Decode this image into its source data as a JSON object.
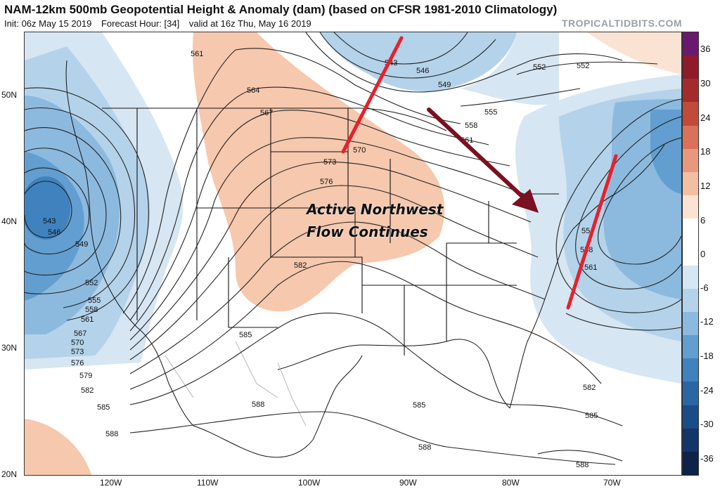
{
  "header": {
    "title": "NAM-12km 500mb Geopotential Height & Anomaly (dam) (based on CFSR 1981-2010 Climatology)",
    "init": "Init: 06z May 15 2019",
    "forecast_hour": "Forecast Hour: [34]",
    "valid": "valid at 16z Thu, May 16 2019",
    "watermark": "TROPICALTIDBITS.COM"
  },
  "annotation": {
    "line1": "Active Northwest",
    "line2": "Flow Continues"
  },
  "colorbar": {
    "labels": [
      "36",
      "30",
      "24",
      "18",
      "12",
      "6",
      "0",
      "-6",
      "-12",
      "-18",
      "-24",
      "-30",
      "-36"
    ],
    "colors": [
      "#6a1a6e",
      "#8e1a2a",
      "#a52a2a",
      "#c24a3a",
      "#d9725a",
      "#e8987c",
      "#f3bfa4",
      "#fbe3d3",
      "#ffffff",
      "#ffffff",
      "#d6e6f2",
      "#b4d3ea",
      "#8cbadf",
      "#629ecf",
      "#3f82be",
      "#2a66a6",
      "#1b4c8a",
      "#14356a",
      "#0d234a"
    ]
  },
  "axes": {
    "lat_labels": [
      "50N",
      "40N",
      "30N",
      "20N"
    ],
    "lon_labels": [
      "120W",
      "110W",
      "100W",
      "90W",
      "80W",
      "70W"
    ]
  },
  "contour_labels": [
    "561",
    "564",
    "567",
    "570",
    "573",
    "576",
    "582",
    "585",
    "588",
    "543",
    "546",
    "549",
    "552",
    "555",
    "558",
    "561",
    "567",
    "570",
    "573",
    "576",
    "579",
    "582",
    "585",
    "588",
    "543",
    "546",
    "549",
    "552",
    "552",
    "555",
    "558",
    "561",
    "55",
    "558",
    "561",
    "582",
    "585",
    "585",
    "588",
    "588"
  ],
  "colors": {
    "negative_anomaly": "#4a8ac6",
    "positive_anomaly": "#f6c8ad",
    "contour": "#222222",
    "arrow_red": "#e8202a",
    "arrow_dark": "#7a1020"
  }
}
